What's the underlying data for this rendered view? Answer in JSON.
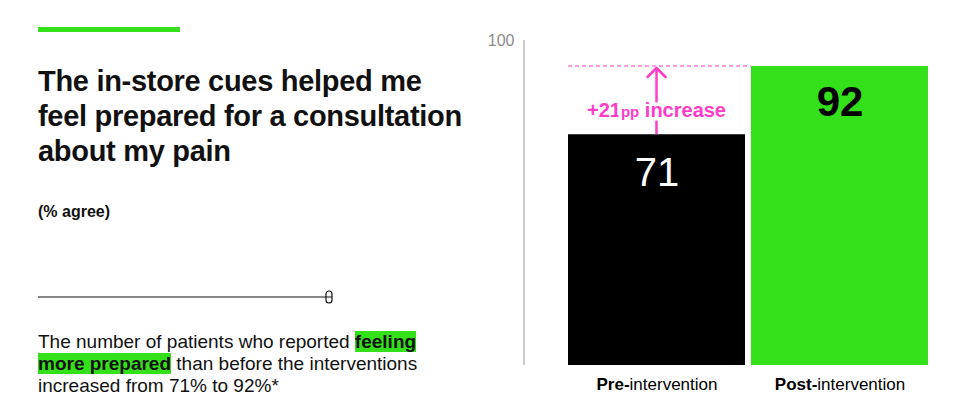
{
  "chart_data": {
    "type": "bar",
    "title": "The in-store cues helped me feel prepared for a consultation about my pain",
    "subtitle": "(% agree)",
    "caption": [
      "The number of patients who reported",
      "feeling more prepared",
      "than before the interventions increased from 71% to 92%*"
    ],
    "annotation": "+21pp increase",
    "categories": [
      "Pre-intervention",
      "Post-intervention"
    ],
    "values": [
      71,
      92
    ],
    "colors": [
      "#000000",
      "#33e01a"
    ],
    "ylim": [
      0,
      100
    ],
    "yticks": [
      100
    ],
    "grid": false,
    "data_labels": true
  }
}
